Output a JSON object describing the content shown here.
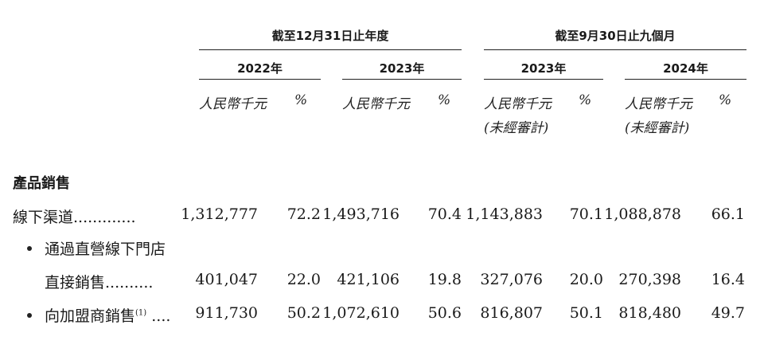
{
  "header": {
    "group_fy": "截至12月31日止年度",
    "group_9m": "截至9月30日止九個月",
    "years": [
      "2022年",
      "2023年",
      "2023年",
      "2024年"
    ],
    "unit_rmb": "人民幣千元",
    "unit_pct": "%",
    "unaudited": "(未經審計)"
  },
  "section_title": "產品銷售",
  "rows": [
    {
      "label": "線下渠道",
      "leader": ".............",
      "values": [
        "1,312,777",
        "72.2",
        "1,493,716",
        "70.4",
        "1,143,883",
        "70.1",
        "1,088,878",
        "66.1"
      ]
    },
    {
      "label_line1": "通過直營線下門店",
      "label_line2": "直接銷售",
      "leader": "..........",
      "values": [
        "401,047",
        "22.0",
        "421,106",
        "19.8",
        "327,076",
        "20.0",
        "270,398",
        "16.4"
      ]
    },
    {
      "label": "向加盟商銷售",
      "footnote": "(1)",
      "leader": "....",
      "values": [
        "911,730",
        "50.2",
        "1,072,610",
        "50.6",
        "816,807",
        "50.1",
        "818,480",
        "49.7"
      ]
    }
  ]
}
